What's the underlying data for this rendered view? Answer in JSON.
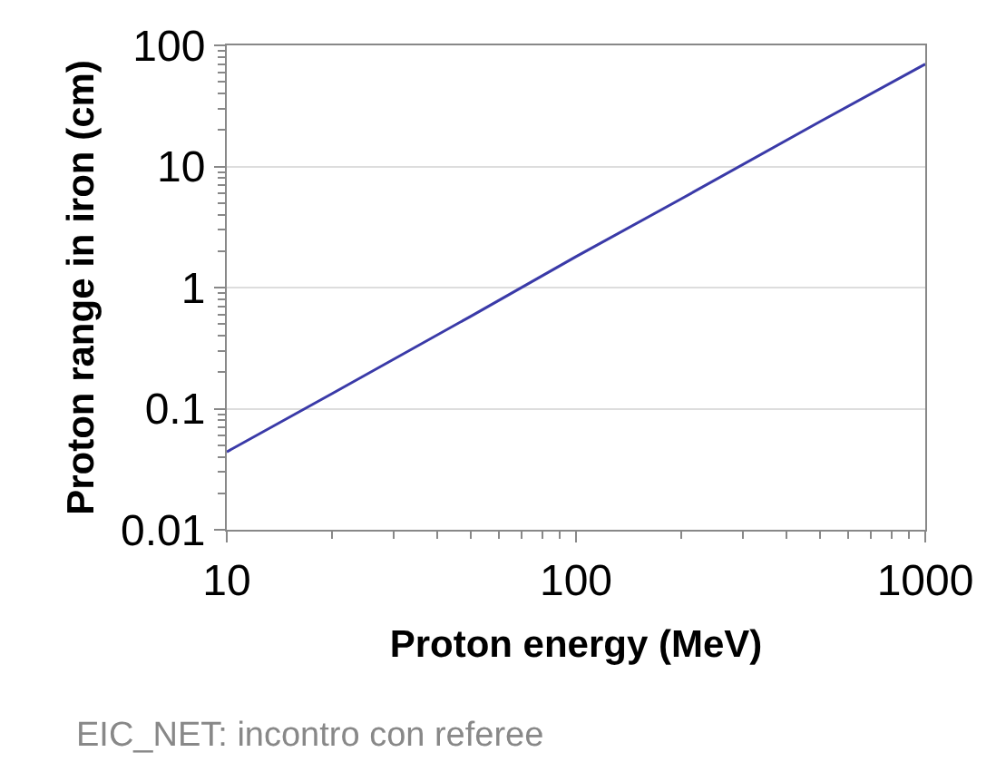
{
  "chart_data": {
    "type": "line",
    "xlabel": "Proton energy (MeV)",
    "ylabel": "Proton range in iron (cm)",
    "x": [
      10,
      20,
      50,
      100,
      200,
      500,
      1000
    ],
    "series": [
      {
        "color": "#3a3aa8",
        "values": [
          0.044,
          0.133,
          0.58,
          1.8,
          5.4,
          23.5,
          70
        ]
      }
    ],
    "log": "xy",
    "xlim": [
      10,
      1000
    ],
    "ylim": [
      0.01,
      100
    ],
    "xticks": [
      10,
      100,
      1000
    ],
    "yticks": [
      0.01,
      0.1,
      1,
      10,
      100
    ],
    "grid": "y",
    "marker": "none",
    "line_style": "solid",
    "annotations": [
      "EIC_NET: incontro con referee"
    ]
  }
}
